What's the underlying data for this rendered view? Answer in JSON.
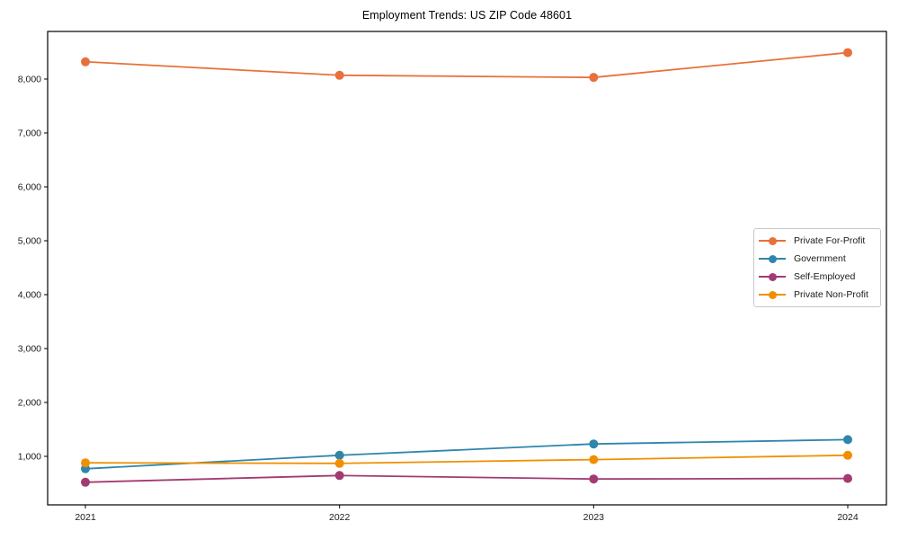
{
  "window": {
    "background_color": "#ffffff"
  },
  "chart_data": {
    "type": "line",
    "title": "Employment Trends: US ZIP Code 48601",
    "xlabel": "",
    "ylabel": "",
    "categories": [
      "2021",
      "2022",
      "2023",
      "2024"
    ],
    "series": [
      {
        "name": "Private For-Profit",
        "color": "#E8703B",
        "values": [
          8320,
          8070,
          8030,
          8490
        ]
      },
      {
        "name": "Government",
        "color": "#2E86AB",
        "values": [
          770,
          1020,
          1230,
          1310
        ]
      },
      {
        "name": "Self-Employed",
        "color": "#A23B72",
        "values": [
          520,
          645,
          580,
          590
        ]
      },
      {
        "name": "Private Non-Profit",
        "color": "#F18F01",
        "values": [
          880,
          870,
          940,
          1020
        ]
      }
    ],
    "ylim": [
      100,
      8883
    ],
    "yticks": [
      1000,
      2000,
      3000,
      4000,
      5000,
      6000,
      7000,
      8000
    ],
    "ytick_labels": [
      "1,000",
      "2,000",
      "3,000",
      "4,000",
      "5,000",
      "6,000",
      "7,000",
      "8,000"
    ],
    "grid": false,
    "legend_position": "center right",
    "axis_color": "#000000",
    "tick_label_color": "#1a1a1a",
    "marker_style": "circle"
  }
}
